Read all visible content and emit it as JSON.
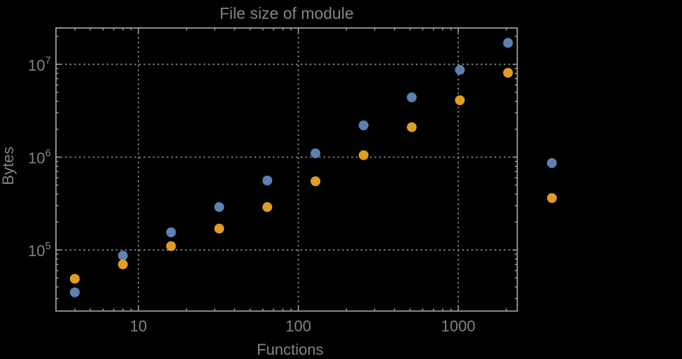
{
  "title": "File size of module",
  "colors": {
    "background": "#000000",
    "text": "#848484",
    "frame": "#9e9e9e",
    "grid": "#8a8a8a",
    "series1": "#5e81b5",
    "series2": "#e09c24"
  },
  "chart_data": {
    "type": "scatter",
    "title": "File size of module",
    "xlabel": "Functions",
    "ylabel": "Bytes",
    "xscale": "log",
    "yscale": "log",
    "xlim": [
      3.05,
      2340
    ],
    "ylim": [
      22000,
      24600000
    ],
    "grid": "dotted-at-major-ticks",
    "x_ticks": [
      {
        "value": 10,
        "label": "10"
      },
      {
        "value": 100,
        "label": "100"
      },
      {
        "value": 1000,
        "label": "1000"
      }
    ],
    "y_ticks": [
      {
        "value": 100000,
        "base": "10",
        "exp": "5"
      },
      {
        "value": 1000000,
        "base": "10",
        "exp": "6"
      },
      {
        "value": 10000000,
        "base": "10",
        "exp": "7"
      }
    ],
    "legend": {
      "position": "outside-right",
      "entries": [
        {
          "label": "",
          "color": "#5e81b5"
        },
        {
          "label": "",
          "color": "#e09c24"
        }
      ]
    },
    "series": [
      {
        "name": "series-blue",
        "color": "#5e81b5",
        "x": [
          4,
          8,
          16,
          32,
          64,
          128,
          256,
          512,
          1024,
          2048
        ],
        "y": [
          35000,
          87000,
          155000,
          290000,
          560000,
          1100000,
          2200000,
          4400000,
          8700000,
          17000000
        ]
      },
      {
        "name": "series-orange",
        "color": "#e09c24",
        "x": [
          4,
          8,
          16,
          32,
          64,
          128,
          256,
          512,
          1024,
          2048
        ],
        "y": [
          49000,
          70000,
          110000,
          170000,
          290000,
          550000,
          1050000,
          2100000,
          4100000,
          8100000
        ]
      }
    ]
  }
}
